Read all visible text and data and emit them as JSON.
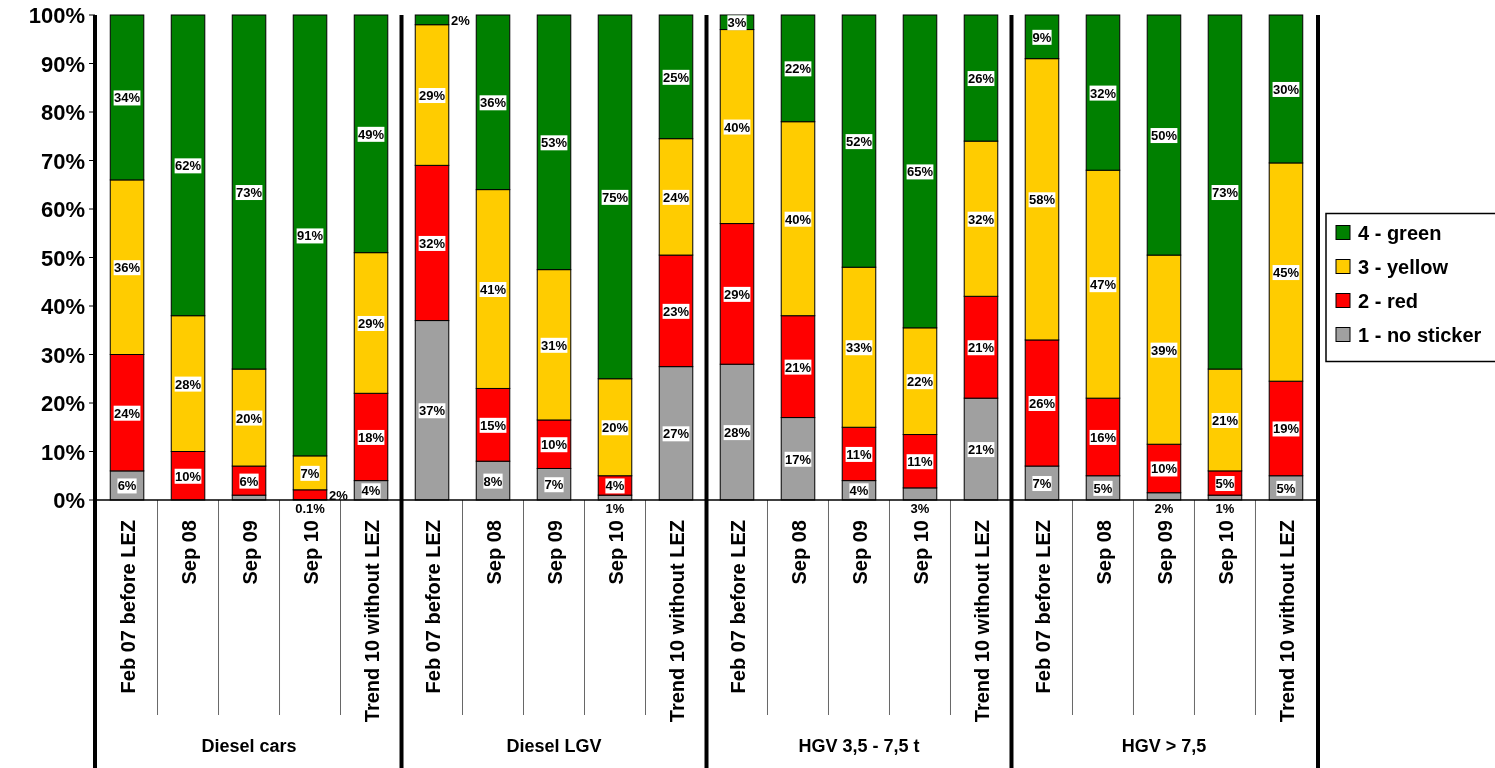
{
  "chart_data": {
    "type": "bar",
    "stacked": true,
    "categories": [
      "Feb 07 before LEZ",
      "Sep 08",
      "Sep 09",
      "Sep 10",
      "Trend 10 without LEZ",
      "Feb 07 before LEZ",
      "Sep 08",
      "Sep 09",
      "Sep 10",
      "Trend 10 without LEZ",
      "Feb 07 before LEZ",
      "Sep 08",
      "Sep 09",
      "Sep 10",
      "Trend 10 without LEZ",
      "Feb 07 before LEZ",
      "Sep 08",
      "Sep 09",
      "Sep 10",
      "Trend 10 without LEZ"
    ],
    "series": [
      {
        "name": "1 - no sticker",
        "color": "#a0a0a0",
        "values": [
          6,
          0,
          1,
          0.1,
          4,
          37,
          8,
          6.5,
          1,
          27.5,
          28,
          17,
          4,
          2.5,
          21,
          7,
          5,
          1.5,
          1,
          5
        ],
        "value_labels": [
          "6%",
          null,
          null,
          "0.1%",
          "4%",
          "37%",
          "8%",
          "7%",
          "1%",
          "27%",
          "28%",
          "17%",
          "4%",
          "3%",
          "21%",
          "7%",
          "5%",
          "2%",
          "1%",
          "5%"
        ]
      },
      {
        "name": "2 - red",
        "color": "#ff0000",
        "values": [
          24,
          10,
          6,
          2,
          18,
          32,
          15,
          10,
          4,
          23,
          29,
          21,
          11,
          11,
          21,
          26,
          16,
          10,
          5,
          19.5
        ],
        "value_labels": [
          "24%",
          "10%",
          "6%",
          "2%",
          "18%",
          "32%",
          "15%",
          "10%",
          "4%",
          "23%",
          "29%",
          "21%",
          "11%",
          "11%",
          "21%",
          "26%",
          "16%",
          "10%",
          "5%",
          "19%"
        ]
      },
      {
        "name": "3 - yellow",
        "color": "#ffcc00",
        "values": [
          36,
          28,
          20,
          7,
          29,
          29,
          41,
          31,
          20,
          24,
          40,
          40,
          33,
          22,
          32,
          58,
          47,
          39,
          21,
          45
        ],
        "value_labels": [
          "36%",
          "28%",
          "20%",
          "7%",
          "29%",
          "29%",
          "41%",
          "31%",
          "20%",
          "24%",
          "40%",
          "40%",
          "33%",
          "22%",
          "32%",
          "58%",
          "47%",
          "39%",
          "21%",
          "45%"
        ]
      },
      {
        "name": "4 - green",
        "color": "#008000",
        "values": [
          34,
          62,
          73,
          90.9,
          49,
          2,
          36,
          52.5,
          75,
          25.5,
          3,
          22,
          52,
          64.5,
          26,
          9,
          32,
          49.5,
          73,
          30.5
        ],
        "value_labels": [
          "34%",
          "62%",
          "73%",
          "91%",
          "49%",
          "2%",
          "36%",
          "53%",
          "75%",
          "25%",
          "3%",
          "22%",
          "52%",
          "65%",
          "26%",
          "9%",
          "32%",
          "50%",
          "73%",
          "30%"
        ]
      }
    ],
    "ylim": [
      0,
      100
    ],
    "yticks": [
      {
        "value": 0,
        "label": "0%"
      },
      {
        "value": 10,
        "label": "10%"
      },
      {
        "value": 20,
        "label": "20%"
      },
      {
        "value": 30,
        "label": "30%"
      },
      {
        "value": 40,
        "label": "40%"
      },
      {
        "value": 50,
        "label": "50%"
      },
      {
        "value": 60,
        "label": "60%"
      },
      {
        "value": 70,
        "label": "70%"
      },
      {
        "value": 80,
        "label": "80%"
      },
      {
        "value": 90,
        "label": "90%"
      },
      {
        "value": 100,
        "label": "100%"
      }
    ],
    "legend": "right",
    "annotations": [
      "Diesel cars",
      "Diesel LGV",
      "HGV 3,5 - 7,5 t",
      "HGV > 7,5"
    ]
  }
}
